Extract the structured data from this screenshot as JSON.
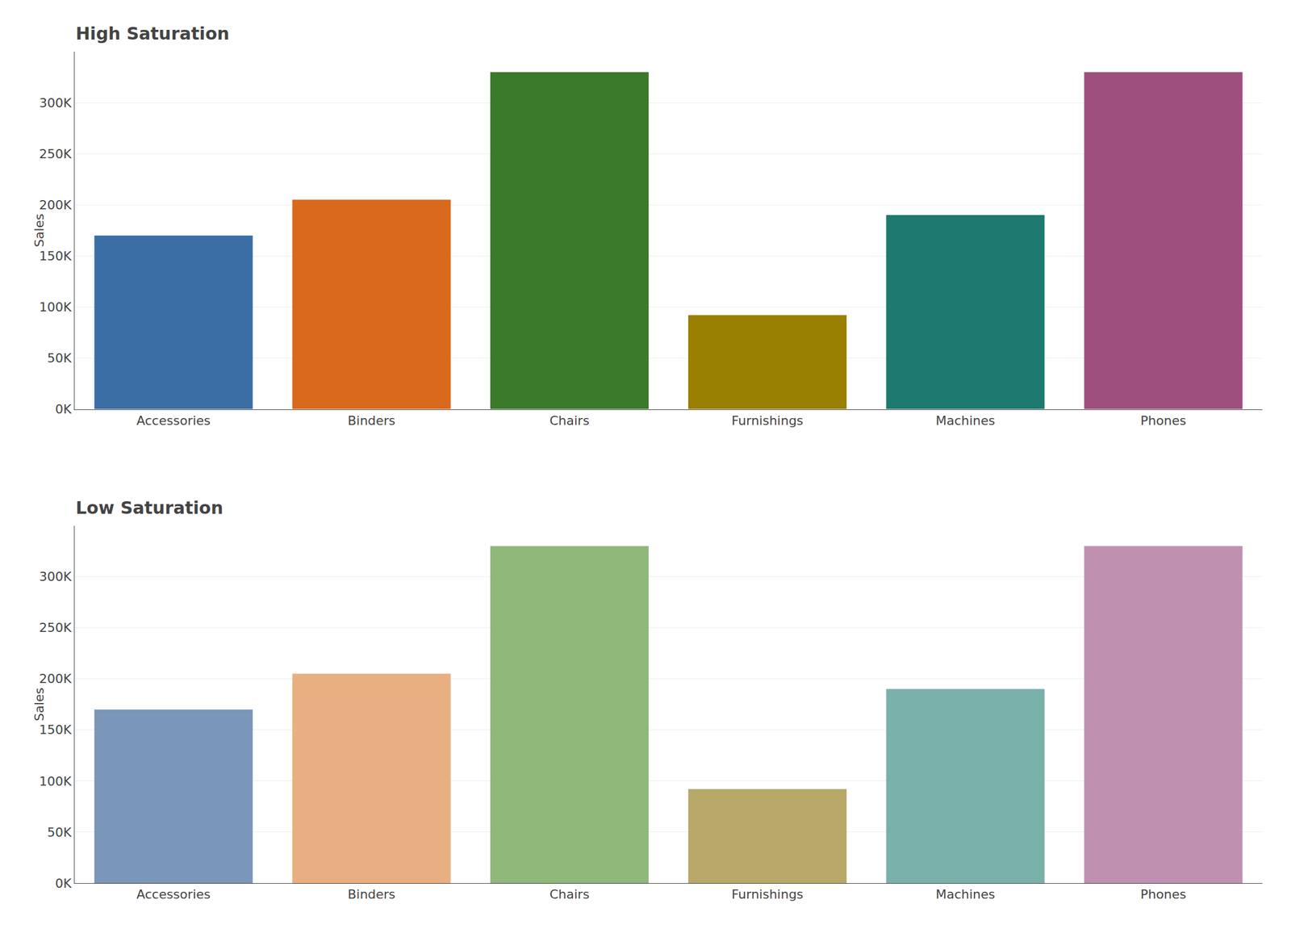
{
  "chart_data": [
    {
      "type": "bar",
      "title": "High Saturation",
      "ylabel": "Sales",
      "categories": [
        "Accessories",
        "Binders",
        "Chairs",
        "Furnishings",
        "Machines",
        "Phones"
      ],
      "values": [
        170000,
        205000,
        330000,
        92000,
        190000,
        330000
      ],
      "colors": [
        "#3a6ea5",
        "#d9691c",
        "#3a7a2a",
        "#9a8000",
        "#1e7a70",
        "#9e4f7e"
      ],
      "ylim": [
        0,
        350000
      ],
      "yticks": [
        {
          "value": 0,
          "label": "0K"
        },
        {
          "value": 50000,
          "label": "50K"
        },
        {
          "value": 100000,
          "label": "100K"
        },
        {
          "value": 150000,
          "label": "150K"
        },
        {
          "value": 200000,
          "label": "200K"
        },
        {
          "value": 250000,
          "label": "250K"
        },
        {
          "value": 300000,
          "label": "300K"
        }
      ],
      "grid": true
    },
    {
      "type": "bar",
      "title": "Low Saturation",
      "ylabel": "Sales",
      "categories": [
        "Accessories",
        "Binders",
        "Chairs",
        "Furnishings",
        "Machines",
        "Phones"
      ],
      "values": [
        170000,
        205000,
        330000,
        92000,
        190000,
        330000
      ],
      "colors": [
        "#7a96b8",
        "#e8b080",
        "#90b87a",
        "#b8a86a",
        "#7ab0aa",
        "#c090b0"
      ],
      "ylim": [
        0,
        350000
      ],
      "yticks": [
        {
          "value": 0,
          "label": "0K"
        },
        {
          "value": 50000,
          "label": "50K"
        },
        {
          "value": 100000,
          "label": "100K"
        },
        {
          "value": 150000,
          "label": "150K"
        },
        {
          "value": 200000,
          "label": "200K"
        },
        {
          "value": 250000,
          "label": "250K"
        },
        {
          "value": 300000,
          "label": "300K"
        }
      ],
      "grid": true
    }
  ]
}
